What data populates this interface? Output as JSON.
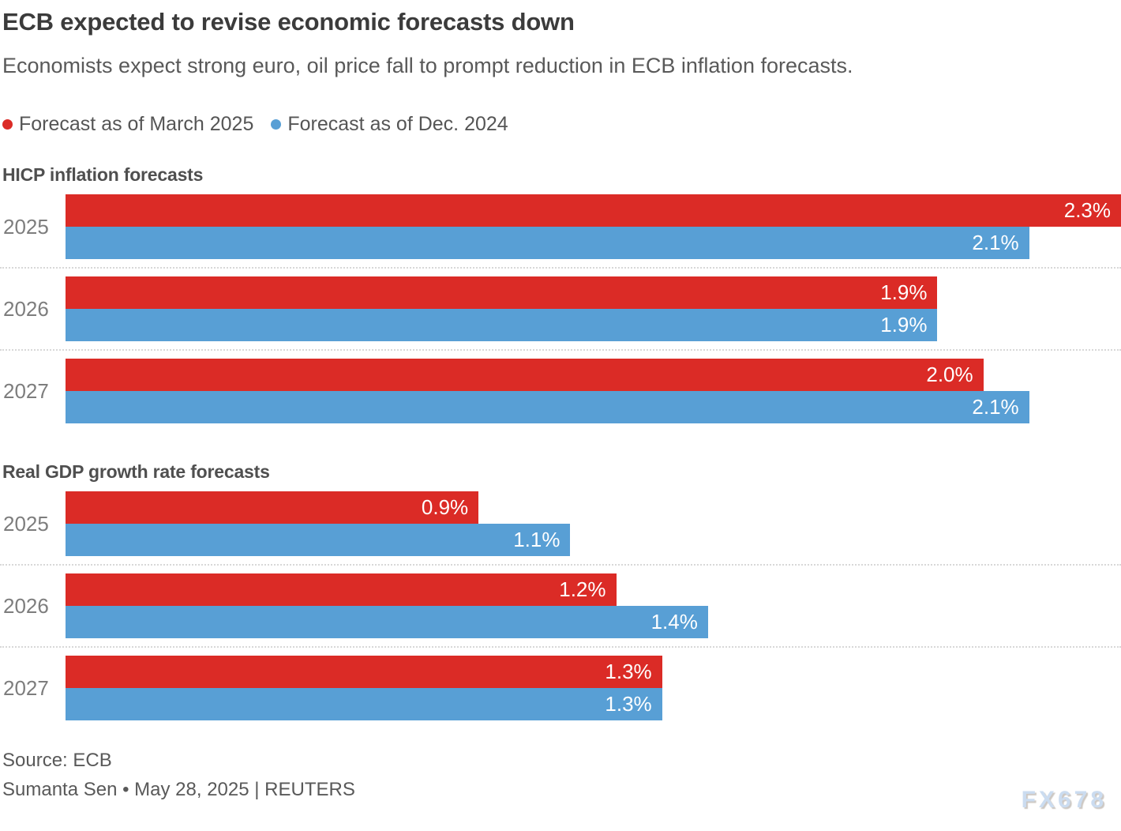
{
  "header": {
    "title": "ECB expected to revise economic forecasts down",
    "subtitle": "Economists expect strong euro, oil price fall to prompt reduction in ECB inflation forecasts."
  },
  "legend": {
    "items": [
      {
        "label": "Forecast as of March 2025",
        "color": "#db2b26"
      },
      {
        "label": "Forecast as of Dec. 2024",
        "color": "#589fd5"
      }
    ]
  },
  "chart_data": [
    {
      "type": "bar",
      "orientation": "horizontal",
      "title": "HICP inflation forecasts",
      "categories": [
        "2025",
        "2026",
        "2027"
      ],
      "series": [
        {
          "name": "Forecast as of March 2025",
          "color": "#db2b26",
          "values": [
            2.3,
            1.9,
            2.0
          ]
        },
        {
          "name": "Forecast as of Dec. 2024",
          "color": "#589fd5",
          "values": [
            2.1,
            1.9,
            2.1
          ]
        }
      ],
      "xlim": [
        0,
        2.3
      ],
      "value_suffix": "%",
      "grid": false,
      "legend_position": "top"
    },
    {
      "type": "bar",
      "orientation": "horizontal",
      "title": "Real GDP growth rate forecasts",
      "categories": [
        "2025",
        "2026",
        "2027"
      ],
      "series": [
        {
          "name": "Forecast as of March 2025",
          "color": "#db2b26",
          "values": [
            0.9,
            1.2,
            1.3
          ]
        },
        {
          "name": "Forecast as of Dec. 2024",
          "color": "#589fd5",
          "values": [
            1.1,
            1.4,
            1.3
          ]
        }
      ],
      "xlim": [
        0,
        2.3
      ],
      "value_suffix": "%",
      "grid": false,
      "legend_position": "top"
    }
  ],
  "footer": {
    "source": "Source: ECB",
    "byline": "Sumanta Sen • May 28, 2025 | REUTERS",
    "watermark": "FX678"
  }
}
